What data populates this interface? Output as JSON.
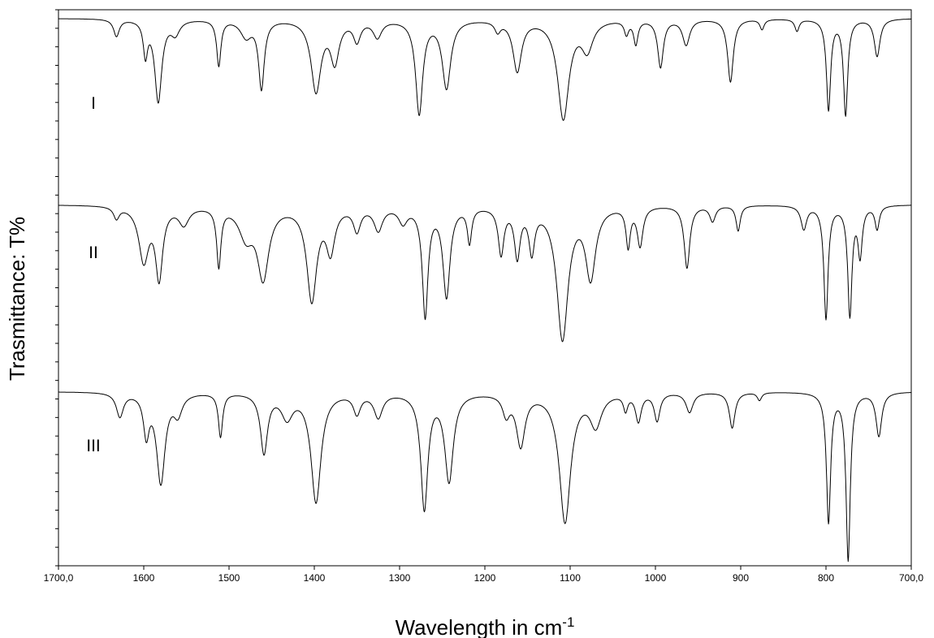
{
  "chart_data": {
    "type": "line",
    "title": "",
    "xlabel": "Wavelength in cm",
    "xlabel_superscript": "-1",
    "ylabel": "Trasmittance: T%",
    "xlim": [
      1700,
      700
    ],
    "x_reversed": true,
    "y_ticks_labeled": false,
    "x_ticks": [
      {
        "value": 1700,
        "label": "1700,0"
      },
      {
        "value": 1600,
        "label": "1600"
      },
      {
        "value": 1500,
        "label": "1500"
      },
      {
        "value": 1400,
        "label": "1400"
      },
      {
        "value": 1300,
        "label": "1300"
      },
      {
        "value": 1200,
        "label": "1200"
      },
      {
        "value": 1100,
        "label": "1100"
      },
      {
        "value": 1000,
        "label": "1000"
      },
      {
        "value": 900,
        "label": "900"
      },
      {
        "value": 800,
        "label": "800"
      },
      {
        "value": 700,
        "label": "700,0"
      }
    ],
    "grid": false,
    "legend": "none",
    "series": [
      {
        "name": "I",
        "baseline": 95,
        "peaks": [
          [
            1632,
            10,
            4
          ],
          [
            1598,
            20,
            3
          ],
          [
            1583,
            48,
            5
          ],
          [
            1563,
            8,
            6
          ],
          [
            1512,
            27,
            3
          ],
          [
            1480,
            10,
            8
          ],
          [
            1462,
            40,
            4
          ],
          [
            1398,
            42,
            7
          ],
          [
            1376,
            24,
            6
          ],
          [
            1350,
            12,
            5
          ],
          [
            1326,
            10,
            6
          ],
          [
            1277,
            55,
            5
          ],
          [
            1245,
            40,
            6
          ],
          [
            1185,
            6,
            4
          ],
          [
            1162,
            30,
            6
          ],
          [
            1108,
            58,
            8
          ],
          [
            1080,
            17,
            8
          ],
          [
            1034,
            8,
            3
          ],
          [
            1023,
            14,
            3
          ],
          [
            994,
            28,
            4
          ],
          [
            964,
            15,
            5
          ],
          [
            912,
            37,
            4
          ],
          [
            875,
            6,
            3
          ],
          [
            834,
            7,
            3
          ],
          [
            797,
            53,
            3
          ],
          [
            777,
            56,
            3
          ],
          [
            740,
            22,
            4
          ]
        ]
      },
      {
        "name": "II",
        "baseline": 95,
        "peaks": [
          [
            1632,
            6,
            4
          ],
          [
            1600,
            28,
            7
          ],
          [
            1582,
            36,
            5
          ],
          [
            1553,
            9,
            7
          ],
          [
            1512,
            30,
            3
          ],
          [
            1480,
            15,
            10
          ],
          [
            1460,
            36,
            8
          ],
          [
            1403,
            48,
            7
          ],
          [
            1381,
            22,
            6
          ],
          [
            1350,
            12,
            5
          ],
          [
            1325,
            12,
            6
          ],
          [
            1296,
            8,
            6
          ],
          [
            1270,
            56,
            4
          ],
          [
            1245,
            46,
            5
          ],
          [
            1218,
            18,
            3
          ],
          [
            1181,
            24,
            4
          ],
          [
            1162,
            25,
            4
          ],
          [
            1145,
            22,
            4
          ],
          [
            1109,
            68,
            8
          ],
          [
            1076,
            36,
            7
          ],
          [
            1032,
            20,
            3
          ],
          [
            1018,
            20,
            4
          ],
          [
            963,
            32,
            4
          ],
          [
            933,
            8,
            4
          ],
          [
            903,
            13,
            3
          ],
          [
            826,
            12,
            4
          ],
          [
            800,
            58,
            3
          ],
          [
            772,
            56,
            3
          ],
          [
            760,
            25,
            3
          ],
          [
            740,
            12,
            3
          ]
        ]
      },
      {
        "name": "III",
        "baseline": 95,
        "peaks": [
          [
            1628,
            12,
            5
          ],
          [
            1597,
            20,
            4
          ],
          [
            1580,
            45,
            6
          ],
          [
            1560,
            10,
            6
          ],
          [
            1510,
            22,
            3
          ],
          [
            1459,
            30,
            5
          ],
          [
            1432,
            12,
            8
          ],
          [
            1398,
            55,
            7
          ],
          [
            1350,
            10,
            5
          ],
          [
            1325,
            12,
            6
          ],
          [
            1271,
            58,
            5
          ],
          [
            1242,
            44,
            6
          ],
          [
            1175,
            10,
            5
          ],
          [
            1158,
            26,
            6
          ],
          [
            1106,
            65,
            8
          ],
          [
            1070,
            16,
            8
          ],
          [
            1035,
            8,
            3
          ],
          [
            1020,
            14,
            4
          ],
          [
            998,
            14,
            4
          ],
          [
            960,
            10,
            5
          ],
          [
            910,
            18,
            4
          ],
          [
            878,
            4,
            3
          ],
          [
            797,
            65,
            3
          ],
          [
            774,
            84,
            3
          ],
          [
            738,
            22,
            4
          ]
        ]
      }
    ]
  }
}
